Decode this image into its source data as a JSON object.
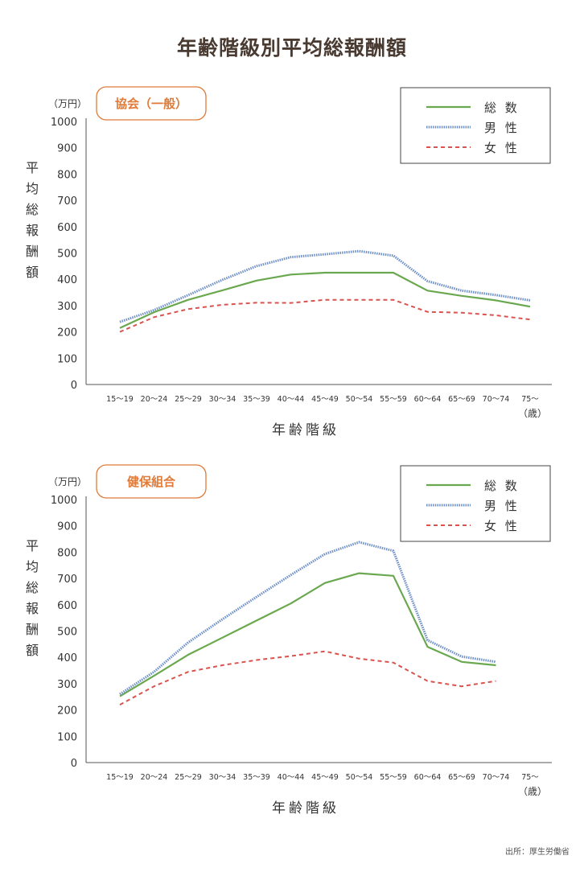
{
  "title": "年齢階級別平均総報酬額",
  "source": "出所：厚生労働省",
  "chart_data": [
    {
      "type": "line",
      "badge": "協会（一般）",
      "unit": "（万円）",
      "ylabel": "平均総報酬額",
      "xlabel": "年齢階級",
      "x_unit": "（歳）",
      "ylim": [
        0,
        1000
      ],
      "yticks": [
        0,
        100,
        200,
        300,
        400,
        500,
        600,
        700,
        800,
        900,
        1000
      ],
      "categories": [
        "15～19",
        "20～24",
        "25～29",
        "30～34",
        "35～39",
        "40～44",
        "45～49",
        "50～54",
        "55～59",
        "60～64",
        "65～69",
        "70～74",
        "75～"
      ],
      "legend_position": "top-right",
      "grid": false,
      "series": [
        {
          "name": "総 数",
          "color": "#6aa84f",
          "style": "solid",
          "values": [
            215,
            275,
            322,
            358,
            395,
            418,
            425,
            425,
            425,
            357,
            337,
            320,
            296
          ]
        },
        {
          "name": "男 性",
          "color": "#6d8fc7",
          "style": "dotted",
          "values": [
            238,
            283,
            340,
            398,
            450,
            484,
            495,
            507,
            490,
            393,
            357,
            340,
            320
          ]
        },
        {
          "name": "女 性",
          "color": "#d9534f",
          "style": "dashed",
          "values": [
            200,
            256,
            287,
            303,
            311,
            310,
            322,
            322,
            322,
            276,
            273,
            263,
            247
          ]
        }
      ]
    },
    {
      "type": "line",
      "badge": "健保組合",
      "unit": "（万円）",
      "ylabel": "平均総報酬額",
      "xlabel": "年齢階級",
      "x_unit": "（歳）",
      "ylim": [
        0,
        1000
      ],
      "yticks": [
        0,
        100,
        200,
        300,
        400,
        500,
        600,
        700,
        800,
        900,
        1000
      ],
      "categories": [
        "15～19",
        "20～24",
        "25～29",
        "30～34",
        "35～39",
        "40～44",
        "45～49",
        "50～54",
        "55～59",
        "60～64",
        "65～69",
        "70～74",
        "75～"
      ],
      "legend_position": "top-right",
      "grid": false,
      "series": [
        {
          "name": "総 数",
          "color": "#6aa84f",
          "style": "solid",
          "values": [
            252,
            330,
            410,
            475,
            540,
            605,
            683,
            720,
            710,
            440,
            383,
            370,
            null
          ]
        },
        {
          "name": "男 性",
          "color": "#6d8fc7",
          "style": "dotted",
          "values": [
            260,
            345,
            457,
            545,
            630,
            713,
            793,
            838,
            805,
            465,
            403,
            383,
            null
          ]
        },
        {
          "name": "女 性",
          "color": "#d9534f",
          "style": "dashed",
          "values": [
            220,
            290,
            345,
            370,
            390,
            405,
            423,
            395,
            380,
            310,
            290,
            310,
            null
          ]
        }
      ]
    }
  ]
}
